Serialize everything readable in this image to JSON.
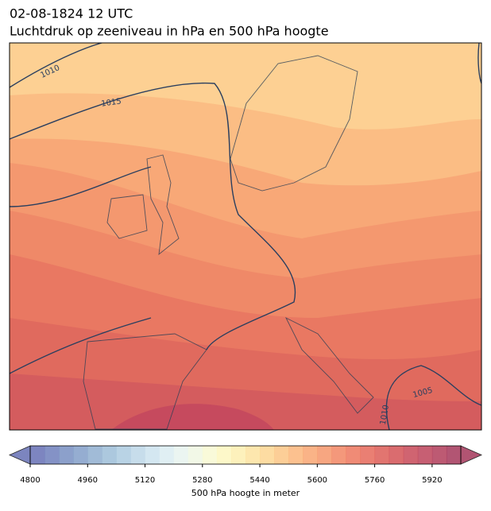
{
  "chart_data": {
    "type": "contour-map",
    "title": "02-08-1824 12 UTC",
    "subtitle": "Luchtdruk op zeeniveau in hPa en 500 hPa hoogte",
    "isobars": [
      {
        "value": 1010
      },
      {
        "value": 1015
      },
      {
        "value": 1005
      },
      {
        "value": 1010
      }
    ],
    "colorbar": {
      "label": "500 hPa hoogte in meter",
      "lim": [
        4800,
        6000
      ],
      "ticks": [
        4800,
        4960,
        5120,
        5280,
        5440,
        5600,
        5760,
        5920
      ],
      "colors": [
        "#6670b5",
        "#6e7fbc",
        "#788fc2",
        "#839fc9",
        "#90afd0",
        "#9ebed8",
        "#adcbe0",
        "#bdd7e7",
        "#cce3ee",
        "#dbecf1",
        "#e7f3ef",
        "#f0f7e3",
        "#f8f9d2",
        "#fdf7c0",
        "#fdefb0",
        "#fde3a0",
        "#fdd692",
        "#fcc685",
        "#fbb67b",
        "#f9a672",
        "#f6966b",
        "#f28664",
        "#ed775e",
        "#e6695a",
        "#dd5d57",
        "#d35256",
        "#c84958",
        "#bd435a",
        "#b13d5a",
        "#a4375a"
      ]
    }
  }
}
